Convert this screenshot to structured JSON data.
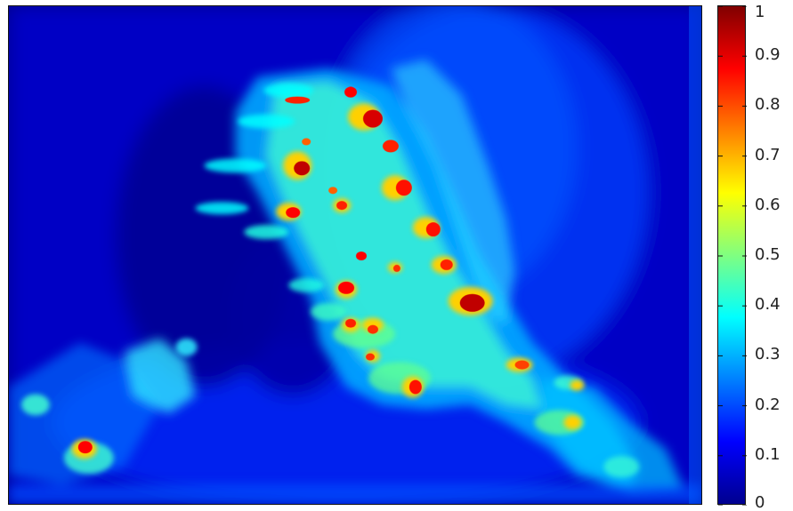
{
  "chart_data": {
    "type": "heatmap",
    "title": "",
    "xlabel": "",
    "ylabel": "",
    "colormap": "jet",
    "value_range": [
      0,
      1
    ],
    "colorbar": {
      "ticks": [
        "0",
        "0.1",
        "0.2",
        "0.3",
        "0.4",
        "0.5",
        "0.6",
        "0.7",
        "0.8",
        "0.9",
        "1"
      ],
      "tick_values": [
        0,
        0.1,
        0.2,
        0.3,
        0.4,
        0.5,
        0.6,
        0.7,
        0.8,
        0.9,
        1
      ]
    }
  },
  "colors": {
    "low": "#00008f",
    "mid": "#00ffff",
    "high": "#800000"
  }
}
